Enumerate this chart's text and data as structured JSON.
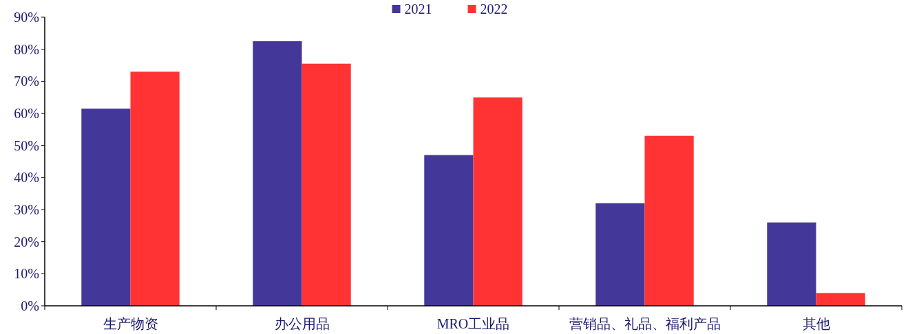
{
  "chart_data": {
    "type": "bar",
    "categories": [
      "生产物资",
      "办公用品",
      "MRO工业品",
      "营销品、礼品、福利产品",
      "其他"
    ],
    "series": [
      {
        "name": "2021",
        "color": "#43389a",
        "values": [
          61.5,
          82.5,
          47,
          32,
          26
        ]
      },
      {
        "name": "2022",
        "color": "#ff3333",
        "values": [
          73,
          75.5,
          65,
          53,
          4
        ]
      }
    ],
    "ylim": [
      0,
      90
    ],
    "yticks": [
      {
        "value": 0,
        "label": "0%"
      },
      {
        "value": 10,
        "label": "10%"
      },
      {
        "value": 20,
        "label": "20%"
      },
      {
        "value": 30,
        "label": "30%"
      },
      {
        "value": 40,
        "label": "40%"
      },
      {
        "value": 50,
        "label": "50%"
      },
      {
        "value": 60,
        "label": "60%"
      },
      {
        "value": 70,
        "label": "70%"
      },
      {
        "value": 80,
        "label": "80%"
      },
      {
        "value": 90,
        "label": "90%"
      }
    ],
    "legend": "top"
  }
}
